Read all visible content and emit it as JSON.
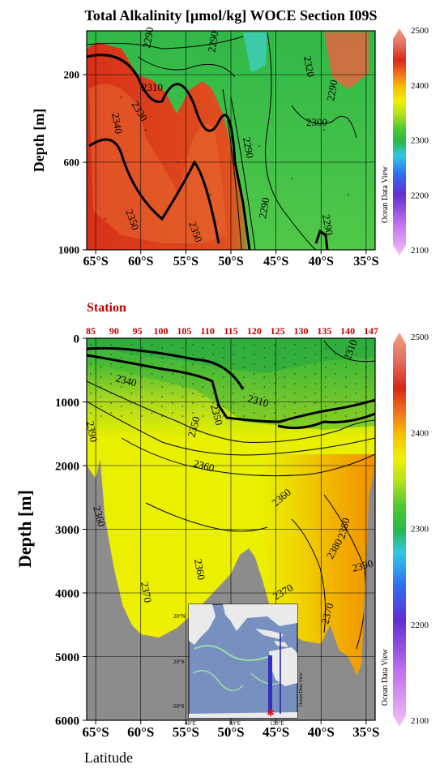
{
  "title": "Total Alkalinity [µmol/kg]  WOCE Section I09S",
  "colorbar": {
    "ticks": [
      "2500",
      "2400",
      "2300",
      "2200",
      "2100"
    ],
    "watermark": "Ocean Data View"
  },
  "colors": {
    "land": "#8c8c8c",
    "station_text": "#c00000",
    "scale": [
      "#f5c0f5",
      "#c070f0",
      "#6030d0",
      "#3070f0",
      "#30c8e8",
      "#28b848",
      "#50c830",
      "#b0e020",
      "#f0f000",
      "#f8c000",
      "#f07020",
      "#d82818",
      "#e07060",
      "#f0a080"
    ]
  },
  "chart_data": [
    {
      "type": "heatmap",
      "panel": "upper",
      "ylabel": "Depth [m]",
      "xlabel": "",
      "x_ticks": [
        "65°S",
        "60°S",
        "55°S",
        "50°S",
        "45°S",
        "40°S",
        "35°S"
      ],
      "x_values": [
        -65,
        -60,
        -55,
        -50,
        -45,
        -40,
        -35
      ],
      "y_ticks": [
        "200",
        "600",
        "1000"
      ],
      "y_values": [
        200,
        600,
        1000
      ],
      "xlim": [
        -66,
        -34
      ],
      "ylim": [
        1000,
        0
      ],
      "contour_labels": [
        "2290",
        "2300",
        "2310",
        "2320",
        "2330",
        "2340",
        "2350"
      ],
      "bold_contour": 2310,
      "grid": true
    },
    {
      "type": "heatmap",
      "panel": "lower",
      "ylabel": "Depth [m]",
      "xlabel": "Latitude",
      "x_ticks": [
        "65°S",
        "60°S",
        "55°S",
        "50°S",
        "45°S",
        "40°S",
        "35°S"
      ],
      "x_values": [
        -65,
        -60,
        -55,
        -50,
        -45,
        -40,
        -35
      ],
      "y_ticks": [
        "0",
        "1000",
        "2000",
        "3000",
        "4000",
        "5000",
        "6000"
      ],
      "y_values": [
        0,
        1000,
        2000,
        3000,
        4000,
        5000,
        6000
      ],
      "xlim": [
        -66,
        -34
      ],
      "ylim": [
        6000,
        0
      ],
      "contour_labels": [
        "2310",
        "2340",
        "2350",
        "2360",
        "2370",
        "2380",
        "2390"
      ],
      "bold_contour": 2310,
      "grid": true,
      "stations": {
        "title": "Station",
        "labels": [
          "85",
          "90",
          "95",
          "100",
          "105",
          "110",
          "115",
          "120",
          "125",
          "130",
          "135",
          "140",
          "147"
        ]
      },
      "bathymetry": [
        [
          -66,
          2000
        ],
        [
          -65,
          2200
        ],
        [
          -64.5,
          1900
        ],
        [
          -64,
          2800
        ],
        [
          -63,
          3600
        ],
        [
          -62,
          4200
        ],
        [
          -61,
          4500
        ],
        [
          -60,
          4650
        ],
        [
          -58,
          4700
        ],
        [
          -56,
          4550
        ],
        [
          -54,
          4300
        ],
        [
          -52,
          4000
        ],
        [
          -50,
          3700
        ],
        [
          -49,
          3400
        ],
        [
          -48,
          3300
        ],
        [
          -47.3,
          3450
        ],
        [
          -46.5,
          3800
        ],
        [
          -45.5,
          4300
        ],
        [
          -44,
          4600
        ],
        [
          -42,
          4750
        ],
        [
          -40,
          4800
        ],
        [
          -39,
          4500
        ],
        [
          -38,
          4900
        ],
        [
          -37,
          5000
        ],
        [
          -36,
          5300
        ],
        [
          -35.5,
          5100
        ],
        [
          -35,
          3500
        ],
        [
          -34.7,
          2500
        ],
        [
          -34,
          2000
        ]
      ]
    }
  ],
  "inset_map": {
    "lat_labels": [
      "20°N",
      "20°S",
      "60°S"
    ],
    "lon_labels": [
      "40°E",
      "80°E",
      "120°E"
    ],
    "watermark": "Ocean Data View"
  }
}
